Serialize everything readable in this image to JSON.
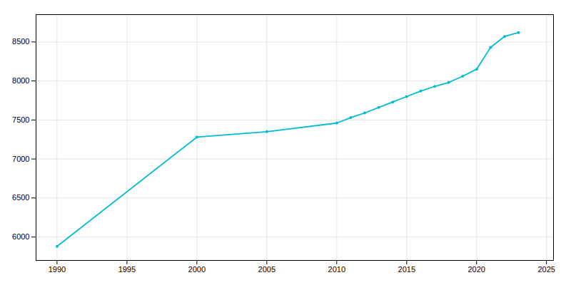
{
  "chart_data": {
    "type": "line",
    "x": [
      1990,
      2000,
      2005,
      2010,
      2011,
      2012,
      2013,
      2014,
      2015,
      2016,
      2017,
      2018,
      2019,
      2020,
      2021,
      2022,
      2023
    ],
    "values": [
      5880,
      7280,
      7350,
      7460,
      7530,
      7590,
      7660,
      7730,
      7800,
      7870,
      7930,
      7980,
      8060,
      8150,
      8430,
      8570,
      8620
    ],
    "color": "#00bcd4",
    "marker": "circle",
    "xlim": [
      1988.5,
      2025.5
    ],
    "ylim": [
      5700,
      8850
    ],
    "xticks": [
      1990,
      1995,
      2000,
      2005,
      2010,
      2015,
      2020,
      2025
    ],
    "yticks": [
      6000,
      6500,
      7000,
      7500,
      8000,
      8500
    ],
    "grid": true
  }
}
